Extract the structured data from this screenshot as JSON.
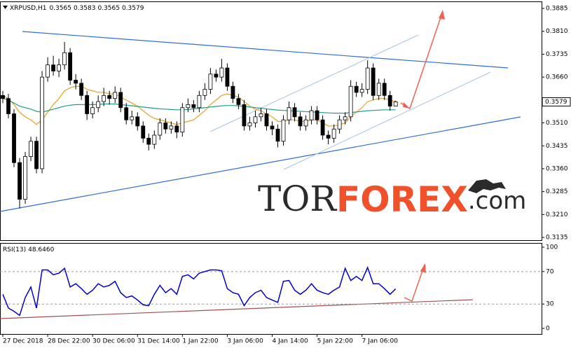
{
  "chart_data": {
    "type": "candlestick",
    "symbol": "XRPUSD,H1",
    "bull_color": "#ffffff",
    "bear_color": "#000000",
    "open": [
      0.36,
      0.359,
      0.354,
      0.338,
      0.326,
      0.34,
      0.345,
      0.336,
      0.366,
      0.37,
      0.368,
      0.37,
      0.374,
      0.365,
      0.364,
      0.36,
      0.354,
      0.356,
      0.358,
      0.36,
      0.359,
      0.361,
      0.356,
      0.352,
      0.353,
      0.35,
      0.346,
      0.344,
      0.347,
      0.351,
      0.349,
      0.35,
      0.348,
      0.356,
      0.357,
      0.356,
      0.36,
      0.362,
      0.367,
      0.366,
      0.369,
      0.363,
      0.359,
      0.357,
      0.35,
      0.351,
      0.353,
      0.354,
      0.35,
      0.349,
      0.345,
      0.352,
      0.356,
      0.353,
      0.35,
      0.352,
      0.355,
      0.352,
      0.347,
      0.346,
      0.349,
      0.352,
      0.353,
      0.363,
      0.361,
      0.362,
      0.369,
      0.36,
      0.364,
      0.36,
      0.3565
    ],
    "high": [
      0.3615,
      0.3605,
      0.3555,
      0.3395,
      0.3415,
      0.3465,
      0.3465,
      0.368,
      0.3725,
      0.373,
      0.372,
      0.3775,
      0.3755,
      0.367,
      0.3655,
      0.3615,
      0.358,
      0.36,
      0.3625,
      0.3615,
      0.363,
      0.3625,
      0.3575,
      0.355,
      0.3545,
      0.3515,
      0.3475,
      0.3485,
      0.3525,
      0.3525,
      0.3515,
      0.3515,
      0.3575,
      0.359,
      0.3585,
      0.3615,
      0.364,
      0.369,
      0.3685,
      0.372,
      0.3705,
      0.3645,
      0.3605,
      0.3585,
      0.353,
      0.355,
      0.356,
      0.3555,
      0.3515,
      0.3505,
      0.3535,
      0.358,
      0.3575,
      0.3545,
      0.3535,
      0.3565,
      0.3565,
      0.3535,
      0.3485,
      0.3505,
      0.3535,
      0.3545,
      0.365,
      0.3645,
      0.364,
      0.3715,
      0.3705,
      0.3655,
      0.3655,
      0.3615,
      0.3583
    ],
    "low": [
      0.3575,
      0.3525,
      0.3365,
      0.323,
      0.3245,
      0.3385,
      0.3345,
      0.3345,
      0.3645,
      0.3665,
      0.366,
      0.3685,
      0.3635,
      0.362,
      0.3585,
      0.352,
      0.3525,
      0.3545,
      0.3565,
      0.357,
      0.3575,
      0.3545,
      0.3505,
      0.3505,
      0.3485,
      0.3445,
      0.342,
      0.3425,
      0.3455,
      0.3475,
      0.3475,
      0.346,
      0.3465,
      0.3545,
      0.3545,
      0.3545,
      0.3585,
      0.3605,
      0.3645,
      0.3645,
      0.3615,
      0.3575,
      0.3555,
      0.3485,
      0.3485,
      0.3495,
      0.3515,
      0.3485,
      0.347,
      0.343,
      0.3435,
      0.3505,
      0.3515,
      0.3485,
      0.3485,
      0.3505,
      0.3505,
      0.3455,
      0.344,
      0.3445,
      0.3475,
      0.3505,
      0.3515,
      0.3595,
      0.3595,
      0.3605,
      0.3585,
      0.3585,
      0.3585,
      0.355,
      0.3565
    ],
    "close": [
      0.359,
      0.354,
      0.338,
      0.326,
      0.34,
      0.345,
      0.336,
      0.366,
      0.37,
      0.368,
      0.37,
      0.374,
      0.365,
      0.364,
      0.36,
      0.354,
      0.356,
      0.358,
      0.36,
      0.359,
      0.361,
      0.356,
      0.352,
      0.353,
      0.35,
      0.346,
      0.344,
      0.347,
      0.351,
      0.349,
      0.35,
      0.348,
      0.356,
      0.357,
      0.356,
      0.36,
      0.362,
      0.367,
      0.366,
      0.369,
      0.363,
      0.359,
      0.357,
      0.35,
      0.351,
      0.353,
      0.354,
      0.35,
      0.349,
      0.345,
      0.352,
      0.356,
      0.353,
      0.35,
      0.352,
      0.355,
      0.352,
      0.347,
      0.346,
      0.349,
      0.352,
      0.353,
      0.363,
      0.361,
      0.362,
      0.369,
      0.36,
      0.364,
      0.36,
      0.3565,
      0.3579
    ],
    "moving_averages": [
      {
        "color": "#e8a020",
        "values": [
          0.36,
          0.359,
          0.357,
          0.3545,
          0.353,
          0.352,
          0.3505,
          0.352,
          0.3545,
          0.357,
          0.359,
          0.3615,
          0.3625,
          0.363,
          0.363,
          0.362,
          0.3615,
          0.361,
          0.361,
          0.3605,
          0.3605,
          0.3595,
          0.3585,
          0.3575,
          0.3565,
          0.355,
          0.3535,
          0.3525,
          0.352,
          0.3515,
          0.351,
          0.3505,
          0.351,
          0.3515,
          0.352,
          0.3535,
          0.355,
          0.357,
          0.3585,
          0.36,
          0.3605,
          0.36,
          0.3595,
          0.358,
          0.3565,
          0.3555,
          0.355,
          0.354,
          0.353,
          0.3515,
          0.3515,
          0.352,
          0.352,
          0.3515,
          0.3515,
          0.352,
          0.352,
          0.351,
          0.35,
          0.35,
          0.3505,
          0.351,
          0.353,
          0.3545,
          0.356,
          0.358,
          0.3585,
          0.359,
          0.359,
          0.3585,
          0.358
        ]
      },
      {
        "color": "#20a090",
        "values": [
          0.359,
          0.3585,
          0.3575,
          0.3565,
          0.356,
          0.3555,
          0.3548,
          0.3545,
          0.355,
          0.3555,
          0.356,
          0.3565,
          0.3568,
          0.357,
          0.357,
          0.357,
          0.357,
          0.357,
          0.3572,
          0.3572,
          0.3572,
          0.357,
          0.3568,
          0.3566,
          0.3564,
          0.3562,
          0.356,
          0.3558,
          0.3556,
          0.3555,
          0.3554,
          0.3553,
          0.3553,
          0.3554,
          0.3556,
          0.3558,
          0.356,
          0.3562,
          0.3564,
          0.3566,
          0.3567,
          0.3567,
          0.3566,
          0.3564,
          0.3562,
          0.356,
          0.3558,
          0.3556,
          0.3554,
          0.3552,
          0.3551,
          0.355,
          0.3549,
          0.3548,
          0.3547,
          0.3546,
          0.3545,
          0.3544,
          0.3543,
          0.3542,
          0.3542,
          0.3542,
          0.3544,
          0.3546,
          0.3548,
          0.355,
          0.3551,
          0.3552,
          0.3553,
          0.3553,
          0.3553
        ]
      }
    ],
    "xlim": [
      -0.5,
      96
    ],
    "xticks": [
      {
        "value": 0,
        "label": "27 Dec 2018"
      },
      {
        "value": 8,
        "label": "28 Dec 22:00"
      },
      {
        "value": 16,
        "label": "30 Dec 06:00"
      },
      {
        "value": 24,
        "label": "31 Dec 14:00"
      },
      {
        "value": 32,
        "label": "1 Jan 22:00"
      },
      {
        "value": 40,
        "label": "3 Jan 06:00"
      },
      {
        "value": 48,
        "label": "4 Jan 14:00"
      },
      {
        "value": 56,
        "label": "5 Jan 22:00"
      },
      {
        "value": 64,
        "label": "7 Jan 06:00"
      }
    ],
    "ylim": [
      0.3126,
      0.3908
    ],
    "yticks": [
      0.3885,
      {
        "value": 0.381,
        "label": "0.3810"
      },
      0.3735,
      {
        "value": 0.366,
        "label": "0.3660"
      },
      0.3585,
      {
        "value": 0.351,
        "label": "0.3510"
      },
      0.3435,
      {
        "value": 0.336,
        "label": "0.3360"
      },
      0.3285,
      {
        "value": 0.321,
        "label": "0.3210"
      },
      0.3135
    ],
    "rsi": {
      "name": "RSI(13)",
      "current_label": "48.6460",
      "color": "#0000cc",
      "values": [
        42,
        25,
        21,
        16,
        38,
        51,
        25,
        72,
        72,
        66,
        68,
        74,
        51,
        55,
        49,
        42,
        47,
        55,
        51,
        53,
        58,
        44,
        38,
        40,
        35,
        29,
        28,
        42,
        53,
        44,
        49,
        42,
        64,
        66,
        61,
        68,
        70,
        72,
        72,
        71,
        49,
        44,
        42,
        28,
        38,
        44,
        47,
        38,
        35,
        32,
        58,
        59,
        47,
        42,
        47,
        55,
        47,
        44,
        42,
        47,
        51,
        74,
        59,
        64,
        59,
        75,
        55,
        55,
        49,
        42,
        48.646
      ],
      "ylim": [
        -6.9,
        105.2
      ],
      "yticks": [
        0,
        30,
        70,
        100
      ],
      "levels": [
        30,
        70
      ]
    },
    "watermark": {
      "tor": "TOR",
      "forex": "FOREX",
      "dotcom": ".com"
    }
  }
}
